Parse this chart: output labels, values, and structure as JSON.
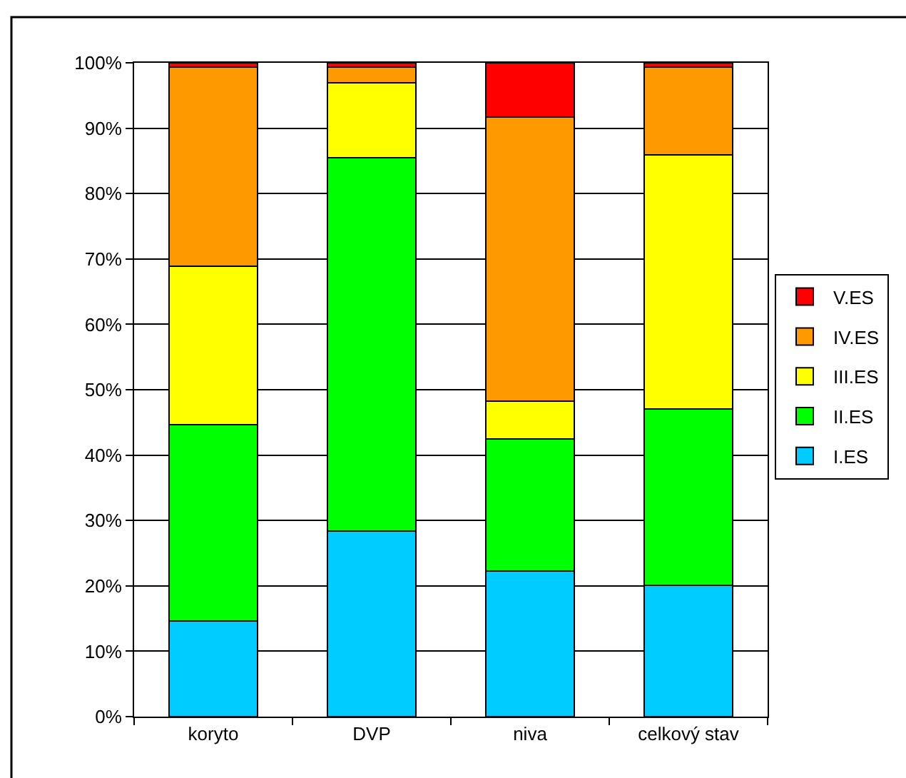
{
  "chart_data": {
    "type": "bar",
    "stacked": true,
    "categories": [
      "koryto",
      "DVP",
      "niva",
      "celkový stav"
    ],
    "series": [
      {
        "name": "I.ES",
        "color": "#00ccff",
        "values": [
          14.6,
          28.4,
          22.3,
          20.1
        ]
      },
      {
        "name": "II.ES",
        "color": "#00ff00",
        "values": [
          30.1,
          57.1,
          20.2,
          26.9
        ]
      },
      {
        "name": "III.ES",
        "color": "#ffff00",
        "values": [
          24.2,
          11.4,
          5.8,
          38.9
        ]
      },
      {
        "name": "IV.ES",
        "color": "#ff9900",
        "values": [
          30.4,
          2.4,
          43.4,
          13.4
        ]
      },
      {
        "name": "V.ES",
        "color": "#ff0000",
        "values": [
          0.7,
          0.7,
          8.3,
          0.7
        ]
      }
    ],
    "ylim": [
      0,
      100
    ],
    "yticks": [
      {
        "value": 0,
        "label": "0%"
      },
      {
        "value": 10,
        "label": "10%"
      },
      {
        "value": 20,
        "label": "20%"
      },
      {
        "value": 30,
        "label": "30%"
      },
      {
        "value": 40,
        "label": "40%"
      },
      {
        "value": 50,
        "label": "50%"
      },
      {
        "value": 60,
        "label": "60%"
      },
      {
        "value": 70,
        "label": "70%"
      },
      {
        "value": 80,
        "label": "80%"
      },
      {
        "value": 90,
        "label": "90%"
      },
      {
        "value": 100,
        "label": "100%"
      }
    ],
    "grid": "y",
    "legend": "right"
  }
}
